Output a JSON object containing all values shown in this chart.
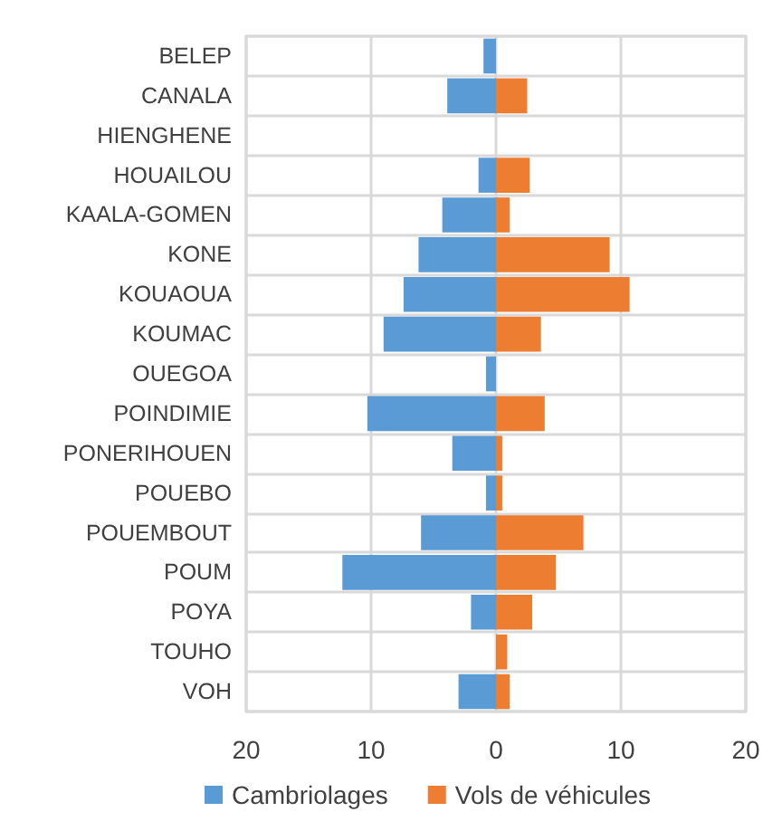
{
  "chart_data": {
    "type": "bar",
    "orientation": "horizontal",
    "categories": [
      "BELEP",
      "CANALA",
      "HIENGHENE",
      "HOUAILOU",
      "KAALA-GOMEN",
      "KONE",
      "KOUAOUA",
      "KOUMAC",
      "OUEGOA",
      "POINDIMIE",
      "PONERIHOUEN",
      "POUEBO",
      "POUEMBOUT",
      "POUM",
      "POYA",
      "TOUHO",
      "VOH"
    ],
    "series": [
      {
        "name": "Cambriolages",
        "color": "#5b9bd5",
        "values": [
          -1.0,
          -3.9,
          0,
          -1.4,
          -4.3,
          -6.2,
          -7.4,
          -9.0,
          -0.8,
          -10.3,
          -3.5,
          -0.8,
          -6.0,
          -12.3,
          -2.0,
          0,
          -3.0
        ]
      },
      {
        "name": "Vols de véhicules",
        "color": "#ed7d31",
        "values": [
          0,
          2.5,
          0,
          2.7,
          1.1,
          9.1,
          10.7,
          3.6,
          0,
          3.9,
          0.5,
          0.5,
          7.0,
          4.8,
          2.9,
          0.9,
          1.1
        ]
      }
    ],
    "xlim": [
      -20,
      20
    ],
    "xticks": [
      {
        "value": -20,
        "label": "20"
      },
      {
        "value": -10,
        "label": "10"
      },
      0,
      10,
      20
    ],
    "grid": true,
    "legend": "bottom",
    "stacked": true
  }
}
